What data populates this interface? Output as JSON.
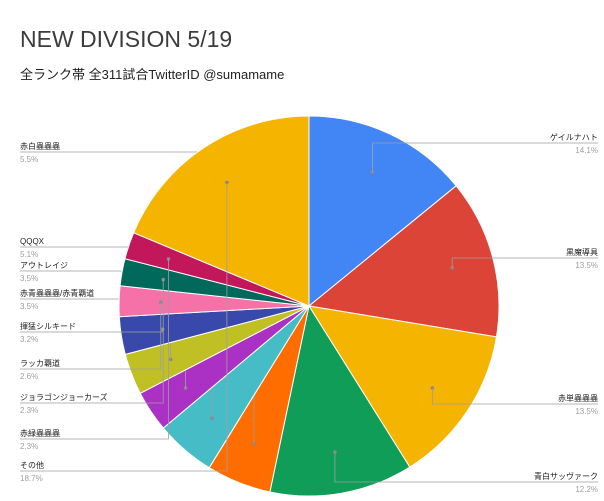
{
  "chart_data": {
    "type": "pie",
    "title": "NEW DIVISION 5/19",
    "subtitle": "全ランク帯 全311試合TwitterID @sumamame",
    "slices": [
      {
        "name": "ゲイルナハト",
        "percent_label": "14.1%",
        "value": 14.1,
        "color": "#4285f4"
      },
      {
        "name": "黒魔導具",
        "percent_label": "13.5%",
        "value": 13.5,
        "color": "#db4437"
      },
      {
        "name": "赤単蟲蟲蟲",
        "percent_label": "13.5%",
        "value": 13.5,
        "color": "#f4b400"
      },
      {
        "name": "青白サッヴァーク",
        "percent_label": "12.2%",
        "value": 12.2,
        "color": "#0f9d58"
      },
      {
        "name": "赤白蟲蟲蟲",
        "percent_label": "5.5%",
        "value": 5.5,
        "color": "#ff6d00"
      },
      {
        "name": "QQQX",
        "percent_label": "5.1%",
        "value": 5.1,
        "color": "#46bdc6"
      },
      {
        "name": "アウトレイジ",
        "percent_label": "3.5%",
        "value": 3.5,
        "color": "#ab30c4"
      },
      {
        "name": "赤青蟲蟲蟲/赤青覇道",
        "percent_label": "3.5%",
        "value": 3.5,
        "color": "#c0c025"
      },
      {
        "name": "揮猛シルキード",
        "percent_label": "3.2%",
        "value": 3.2,
        "color": "#3949ab"
      },
      {
        "name": "ラッカ覇道",
        "percent_label": "2.6%",
        "value": 2.6,
        "color": "#f571a7"
      },
      {
        "name": "ジョラゴンジョーカーズ",
        "percent_label": "2.3%",
        "value": 2.3,
        "color": "#00695c"
      },
      {
        "name": "赤緑蟲蟲蟲",
        "percent_label": "2.3%",
        "value": 2.3,
        "color": "#c2185b"
      },
      {
        "name": "その他",
        "percent_label": "18.7%",
        "value": 18.7,
        "color": "#f4b400"
      }
    ]
  }
}
